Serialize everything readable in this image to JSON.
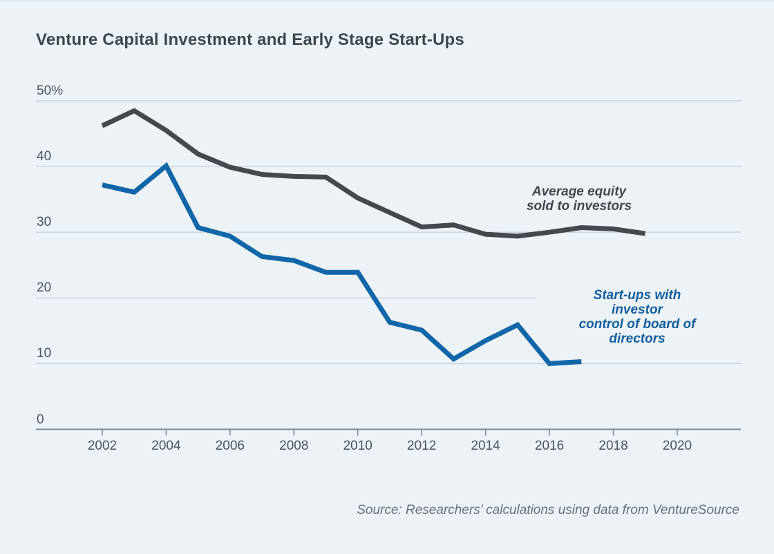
{
  "title": "Venture Capital Investment and Early Stage Start-Ups",
  "source_note": "Source: Researchers’ calculations using data from VentureSource",
  "colors": {
    "background": "#edf2f7",
    "gridline": "#c8d0d7",
    "axis": "#7d858d",
    "equity_series": "#45494e",
    "board_series": "#1166a8",
    "equity_label": "#43484d",
    "board_label": "#115f9e",
    "tick_text": "#4d545b",
    "title_text": "#3f464d",
    "source_text": "#697077"
  },
  "chart_data": {
    "type": "line",
    "title": "Venture Capital Investment and Early Stage Start-Ups",
    "xlabel": "",
    "ylabel": "",
    "ylim": [
      0,
      50
    ],
    "xlim": [
      2000,
      2022
    ],
    "grid": "horizontal",
    "yticks": [
      0,
      10,
      20,
      30,
      40,
      50
    ],
    "ytick_labels": [
      "0",
      "10",
      "20",
      "30",
      "40",
      "50%"
    ],
    "xticks": [
      2002,
      2004,
      2006,
      2008,
      2010,
      2012,
      2014,
      2016,
      2018,
      2020
    ],
    "legend_position": "inline-annotations",
    "series": [
      {
        "name": "Average equity sold to investors",
        "color": "#45494e",
        "x": [
          2002,
          2003,
          2004,
          2005,
          2006,
          2007,
          2008,
          2009,
          2010,
          2011,
          2012,
          2013,
          2014,
          2015,
          2016,
          2017,
          2018,
          2019
        ],
        "values": [
          46.2,
          48.5,
          45.5,
          41.9,
          39.9,
          38.8,
          38.5,
          38.4,
          35.2,
          33.0,
          30.8,
          31.1,
          29.7,
          29.4,
          30.0,
          30.7,
          30.5,
          29.8
        ]
      },
      {
        "name": "Start-ups with investor control of board of directors",
        "color": "#1166a8",
        "x": [
          2002,
          2003,
          2004,
          2005,
          2006,
          2007,
          2008,
          2009,
          2010,
          2011,
          2012,
          2013,
          2014,
          2015,
          2016,
          2017
        ],
        "values": [
          37.2,
          36.1,
          40.1,
          30.7,
          29.4,
          26.3,
          25.7,
          23.9,
          23.9,
          16.3,
          15.1,
          10.7,
          13.5,
          15.9,
          10.0,
          10.3
        ]
      }
    ],
    "annotations": [
      {
        "id": "ann-equity",
        "text": "Average equity\nsold to investors"
      },
      {
        "id": "ann-board",
        "text": "Start-ups with investor\ncontrol of board of directors"
      }
    ]
  }
}
